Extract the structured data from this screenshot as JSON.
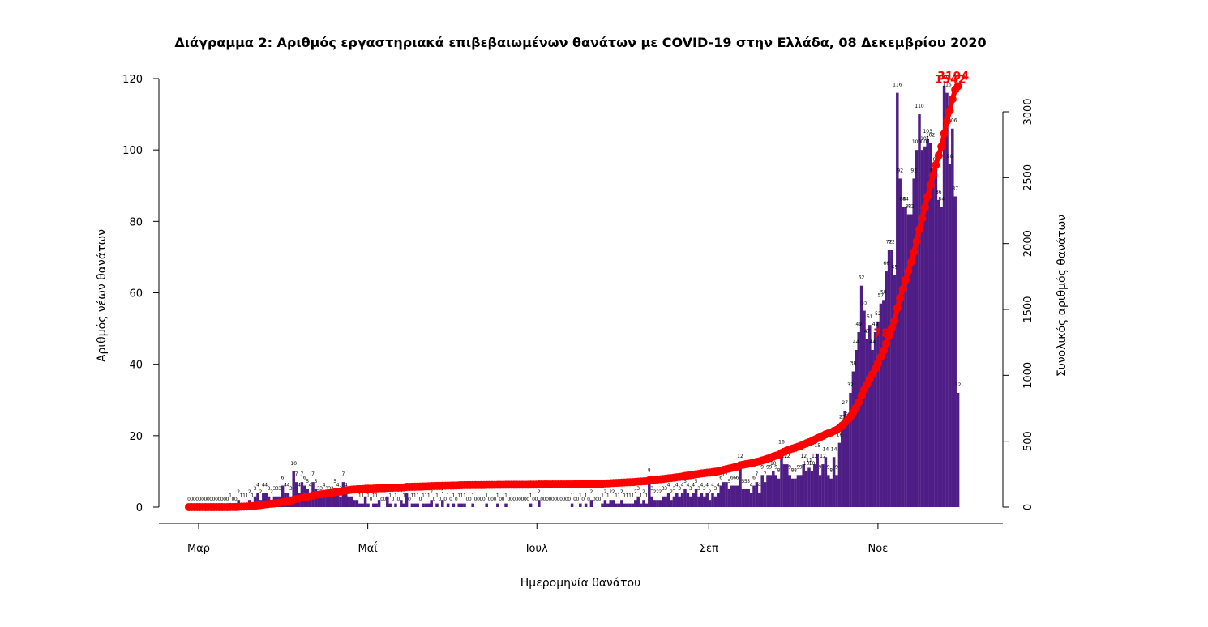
{
  "chart_data": {
    "type": "bar+line",
    "title": "Διάγραμμα 2: Αριθμός εργαστηριακά επιβεβαιωμένων θανάτων με COVID-19 στην Ελλάδα, 08 Δεκεμβρίου 2020",
    "xlabel": "Ημερομηνία θανάτου",
    "ylabel_left": "Αριθμός νέων θανάτων",
    "ylabel_right": "Συνολικός αριθμός θανάτων",
    "ylim_left": [
      0,
      120
    ],
    "ylim_right": [
      0,
      3200
    ],
    "yticks_left": [
      0,
      20,
      40,
      60,
      80,
      100,
      120
    ],
    "yticks_right": [
      0,
      500,
      1000,
      1500,
      2000,
      2500,
      3000
    ],
    "x_ticks": [
      {
        "label": "Μαρ",
        "day": 0
      },
      {
        "label": "Μαΐ",
        "day": 61
      },
      {
        "label": "Ιουλ",
        "day": 122
      },
      {
        "label": "Σεπ",
        "day": 184
      },
      {
        "label": "Νοε",
        "day": 245
      }
    ],
    "start_date": "2020-02-26",
    "daily_deaths": [
      0,
      0,
      0,
      0,
      0,
      0,
      0,
      0,
      0,
      0,
      0,
      0,
      0,
      0,
      0,
      1,
      0,
      0,
      2,
      1,
      1,
      1,
      2,
      1,
      3,
      4,
      2,
      4,
      4,
      3,
      2,
      3,
      3,
      3,
      6,
      4,
      4,
      3,
      10,
      7,
      4,
      7,
      6,
      5,
      4,
      7,
      5,
      3,
      3,
      4,
      3,
      3,
      3,
      5,
      4,
      3,
      7,
      4,
      3,
      3,
      2,
      2,
      1,
      1,
      3,
      1,
      0,
      1,
      1,
      2,
      0,
      0,
      3,
      1,
      0,
      1,
      0,
      2,
      1,
      4,
      0,
      1,
      1,
      1,
      0,
      1,
      1,
      1,
      2,
      0,
      1,
      0,
      2,
      0,
      1,
      0,
      1,
      0,
      1,
      1,
      1,
      0,
      0,
      1,
      0,
      0,
      0,
      0,
      1,
      0,
      0,
      0,
      1,
      0,
      0,
      1,
      0,
      0,
      0,
      0,
      0,
      0,
      0,
      0,
      1,
      0,
      0,
      2,
      0,
      0,
      0,
      0,
      0,
      0,
      0,
      0,
      0,
      0,
      0,
      1,
      0,
      0,
      1,
      0,
      1,
      0,
      2,
      0,
      0,
      0,
      1,
      2,
      1,
      2,
      2,
      1,
      1,
      2,
      1,
      1,
      1,
      1,
      2,
      3,
      1,
      2,
      1,
      8,
      3,
      2,
      2,
      2,
      3,
      3,
      4,
      2,
      3,
      4,
      3,
      4,
      5,
      4,
      3,
      4,
      5,
      3,
      4,
      3,
      4,
      2,
      4,
      3,
      4,
      6,
      7,
      7,
      5,
      6,
      6,
      6,
      12,
      5,
      5,
      5,
      4,
      6,
      7,
      4,
      9,
      7,
      9,
      9,
      10,
      9,
      8,
      16,
      12,
      12,
      9,
      8,
      8,
      9,
      9,
      12,
      10,
      11,
      10,
      12,
      15,
      9,
      12,
      14,
      9,
      8,
      14,
      9,
      18,
      23,
      27,
      24,
      32,
      38,
      44,
      49,
      62,
      55,
      47,
      51,
      44,
      49,
      52,
      57,
      58,
      66,
      72,
      72,
      65,
      116,
      92,
      84,
      84,
      82,
      82,
      92,
      100,
      110,
      100,
      101,
      103,
      102,
      92,
      95,
      86,
      84,
      118,
      116,
      96,
      106,
      87,
      32
    ],
    "total_deaths": 3194,
    "callouts": [
      {
        "label": "78",
        "day": 253
      },
      {
        "label": "1542",
        "day": 278
      },
      {
        "label": "3194",
        "day": 293
      }
    ],
    "colors": {
      "bars": "#4f1d86",
      "line": "#ff0000"
    },
    "grid": false,
    "legend": "none"
  }
}
